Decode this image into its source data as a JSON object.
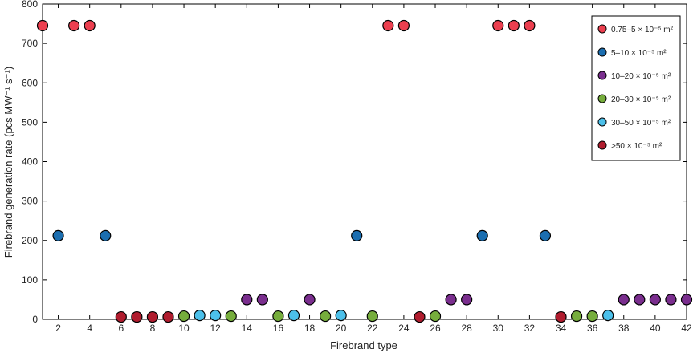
{
  "chart_data": {
    "type": "scatter",
    "title": "",
    "xlabel": "Firebrand type",
    "ylabel": "Firebrand generation rate (pcs MW⁻¹ s⁻¹)",
    "xlim": [
      1,
      42
    ],
    "ylim": [
      0,
      800
    ],
    "xticks": [
      2,
      4,
      6,
      8,
      10,
      12,
      14,
      16,
      18,
      20,
      22,
      24,
      26,
      28,
      30,
      32,
      34,
      36,
      38,
      40,
      42
    ],
    "yticks": [
      0,
      100,
      200,
      300,
      400,
      500,
      600,
      700,
      800
    ],
    "grid": false,
    "legend_position": "top-right",
    "series": [
      {
        "name": "0.75–5 × 10⁻⁵ m²",
        "color": "#ec3f4f",
        "points": [
          [
            1,
            745
          ],
          [
            3,
            745
          ],
          [
            4,
            745
          ],
          [
            23,
            745
          ],
          [
            24,
            745
          ],
          [
            30,
            745
          ],
          [
            31,
            745
          ],
          [
            32,
            745
          ]
        ]
      },
      {
        "name": "5–10 × 10⁻⁵ m²",
        "color": "#1b6eb0",
        "points": [
          [
            2,
            212
          ],
          [
            5,
            212
          ],
          [
            21,
            212
          ],
          [
            29,
            212
          ],
          [
            33,
            212
          ]
        ]
      },
      {
        "name": "10–20 × 10⁻⁵ m²",
        "color": "#7a2e8e",
        "points": [
          [
            14,
            50
          ],
          [
            15,
            50
          ],
          [
            18,
            50
          ],
          [
            27,
            50
          ],
          [
            28,
            50
          ],
          [
            38,
            50
          ],
          [
            39,
            50
          ],
          [
            40,
            50
          ],
          [
            41,
            50
          ],
          [
            42,
            50
          ]
        ]
      },
      {
        "name": "20–30 × 10⁻⁵ m²",
        "color": "#76ad3c",
        "points": [
          [
            10,
            8
          ],
          [
            13,
            8
          ],
          [
            16,
            8
          ],
          [
            19,
            8
          ],
          [
            22,
            8
          ],
          [
            26,
            8
          ],
          [
            35,
            8
          ],
          [
            36,
            8
          ]
        ]
      },
      {
        "name": "30–50 × 10⁻⁵ m²",
        "color": "#4cc0ea",
        "points": [
          [
            11,
            10
          ],
          [
            12,
            10
          ],
          [
            17,
            10
          ],
          [
            20,
            10
          ],
          [
            37,
            10
          ]
        ]
      },
      {
        "name": ">50 × 10⁻⁵ m²",
        "color": "#b01c2e",
        "points": [
          [
            6,
            6
          ],
          [
            7,
            6
          ],
          [
            8,
            6
          ],
          [
            9,
            6
          ],
          [
            25,
            6
          ],
          [
            34,
            6
          ]
        ]
      }
    ]
  }
}
